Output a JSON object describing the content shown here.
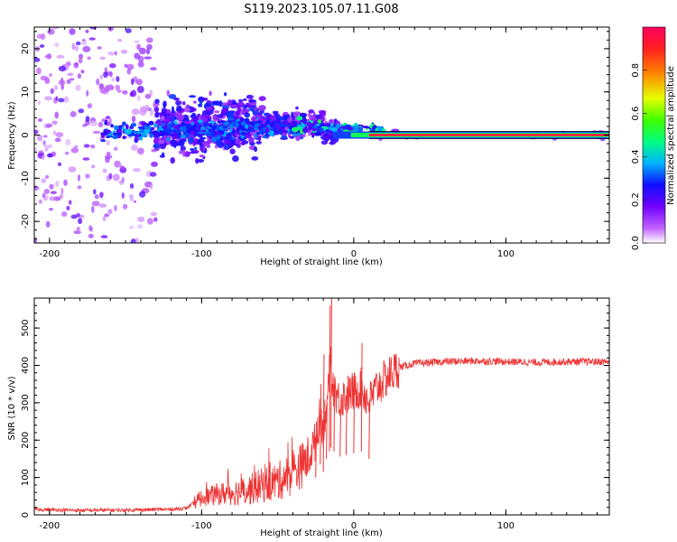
{
  "title": "S119.2023.105.07.11.G08",
  "chart_data": [
    {
      "type": "heatmap",
      "xlabel": "Height of straight line (km)",
      "ylabel": "Frequency (Hz)",
      "xlim": [
        -210,
        168
      ],
      "ylim": [
        -25,
        25
      ],
      "xticks": [
        -200,
        -100,
        0,
        100
      ],
      "yticks": [
        -20,
        -10,
        0,
        10,
        20
      ],
      "colorbar": {
        "label": "Normalized spectral amplitude",
        "range": [
          0,
          1
        ],
        "ticks": [
          0.0,
          0.2,
          0.4,
          0.6,
          0.8
        ],
        "tick_labels": [
          "0.0",
          "0.2",
          "0.4",
          "0.6",
          "0.8"
        ],
        "colors": [
          "#ffffff",
          "#a000ff",
          "#2000ff",
          "#00c8ff",
          "#00ff40",
          "#e6ff00",
          "#ff6000",
          "#ff0040"
        ]
      },
      "carrier_line": {
        "frequency_hz": 0,
        "x_start_km": 10,
        "x_end_km": 168,
        "amplitude": 0.95
      }
    },
    {
      "type": "line",
      "xlabel": "Height of straight line (km)",
      "ylabel": "SNR (10 * v/v)",
      "xlim": [
        -210,
        168
      ],
      "ylim": [
        0,
        580
      ],
      "xticks": [
        -200,
        -100,
        0,
        100
      ],
      "yticks": [
        0,
        100,
        200,
        300,
        400,
        500
      ],
      "series": [
        {
          "color": "#ee3333",
          "x": [
            -210,
            -180,
            -150,
            -120,
            -110,
            -100,
            -90,
            -80,
            -70,
            -60,
            -50,
            -40,
            -30,
            -25,
            -22,
            -20,
            -18,
            -15,
            -12,
            -10,
            -5,
            0,
            5,
            10,
            15,
            20,
            25,
            30,
            35,
            40,
            60,
            80,
            100,
            120,
            140,
            168
          ],
          "y": [
            15,
            12,
            13,
            15,
            18,
            45,
            55,
            60,
            65,
            80,
            90,
            110,
            150,
            200,
            270,
            230,
            300,
            360,
            330,
            310,
            320,
            330,
            340,
            300,
            340,
            360,
            380,
            395,
            400,
            405,
            410,
            412,
            410,
            408,
            410,
            410
          ]
        },
        {
          "color": "#ee3333",
          "x": [
            -25,
            -22,
            -20,
            -18,
            -16,
            -15,
            -13,
            -9,
            -5,
            0,
            5,
            10
          ],
          "y": [
            250,
            350,
            430,
            300,
            560,
            580,
            370,
            290,
            340,
            380,
            460,
            310
          ]
        }
      ]
    }
  ]
}
